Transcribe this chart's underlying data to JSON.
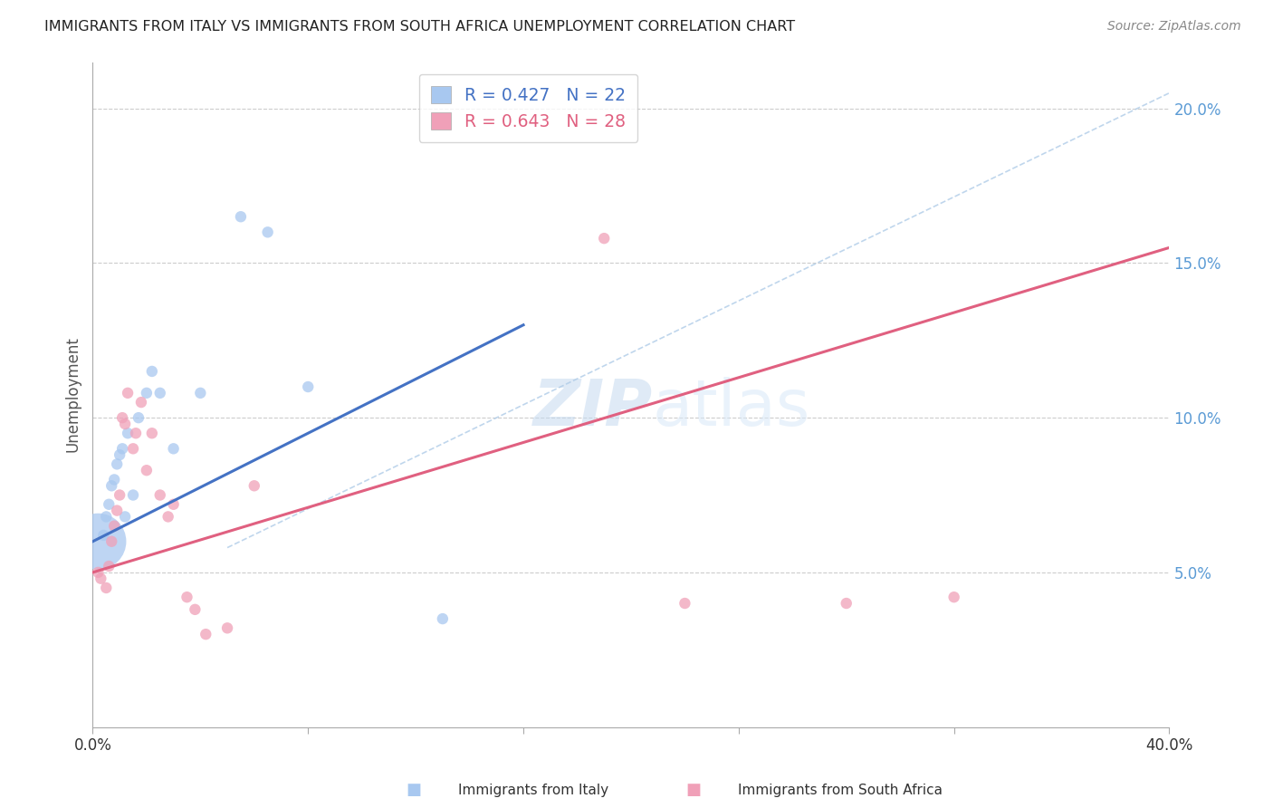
{
  "title": "IMMIGRANTS FROM ITALY VS IMMIGRANTS FROM SOUTH AFRICA UNEMPLOYMENT CORRELATION CHART",
  "source": "Source: ZipAtlas.com",
  "ylabel": "Unemployment",
  "xlim": [
    0,
    0.4
  ],
  "ylim": [
    0.0,
    0.215
  ],
  "yticks": [
    0.05,
    0.1,
    0.15,
    0.2
  ],
  "ytick_labels": [
    "5.0%",
    "10.0%",
    "15.0%",
    "20.0%"
  ],
  "xticks": [
    0.0,
    0.08,
    0.16,
    0.24,
    0.32,
    0.4
  ],
  "italy_R": 0.427,
  "italy_N": 22,
  "sa_R": 0.643,
  "sa_N": 28,
  "italy_color": "#a8c8f0",
  "sa_color": "#f0a0b8",
  "italy_line_color": "#4472c4",
  "sa_line_color": "#e06080",
  "diag_line_color": "#b0cce8",
  "watermark_zip": "ZIP",
  "watermark_atlas": "atlas",
  "italy_scatter_x": [
    0.002,
    0.004,
    0.005,
    0.006,
    0.007,
    0.008,
    0.009,
    0.01,
    0.011,
    0.012,
    0.013,
    0.015,
    0.017,
    0.02,
    0.022,
    0.025,
    0.03,
    0.04,
    0.055,
    0.065,
    0.08,
    0.13
  ],
  "italy_scatter_y": [
    0.06,
    0.062,
    0.068,
    0.072,
    0.078,
    0.08,
    0.085,
    0.088,
    0.09,
    0.068,
    0.095,
    0.075,
    0.1,
    0.108,
    0.115,
    0.108,
    0.09,
    0.108,
    0.165,
    0.16,
    0.11,
    0.035
  ],
  "italy_scatter_size": [
    2000,
    80,
    80,
    80,
    80,
    80,
    80,
    80,
    80,
    80,
    80,
    80,
    80,
    80,
    80,
    80,
    80,
    80,
    80,
    80,
    80,
    80
  ],
  "sa_scatter_x": [
    0.002,
    0.003,
    0.005,
    0.006,
    0.007,
    0.008,
    0.009,
    0.01,
    0.011,
    0.012,
    0.013,
    0.015,
    0.016,
    0.018,
    0.02,
    0.022,
    0.025,
    0.028,
    0.03,
    0.035,
    0.038,
    0.042,
    0.05,
    0.06,
    0.19,
    0.22,
    0.28,
    0.32
  ],
  "sa_scatter_y": [
    0.05,
    0.048,
    0.045,
    0.052,
    0.06,
    0.065,
    0.07,
    0.075,
    0.1,
    0.098,
    0.108,
    0.09,
    0.095,
    0.105,
    0.083,
    0.095,
    0.075,
    0.068,
    0.072,
    0.042,
    0.038,
    0.03,
    0.032,
    0.078,
    0.158,
    0.04,
    0.04,
    0.042
  ],
  "sa_scatter_size": [
    80,
    80,
    80,
    80,
    80,
    80,
    80,
    80,
    80,
    80,
    80,
    80,
    80,
    80,
    80,
    80,
    80,
    80,
    80,
    80,
    80,
    80,
    80,
    80,
    80,
    80,
    80,
    80
  ],
  "italy_line_x": [
    0.0,
    0.16
  ],
  "italy_line_y": [
    0.06,
    0.13
  ],
  "sa_line_x": [
    0.0,
    0.4
  ],
  "sa_line_y": [
    0.05,
    0.155
  ],
  "diag_line_x": [
    0.05,
    0.4
  ],
  "diag_line_y": [
    0.058,
    0.205
  ]
}
